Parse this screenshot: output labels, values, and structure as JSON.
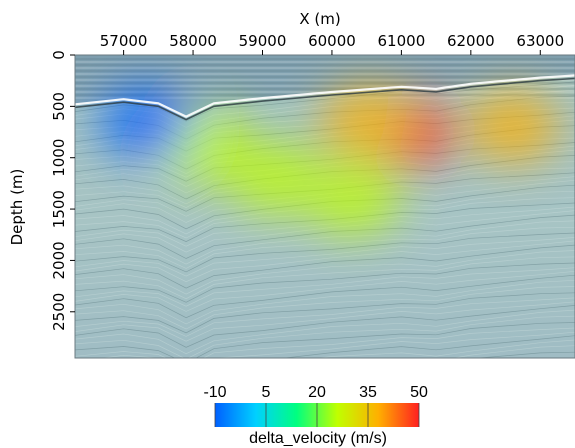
{
  "chart_data": {
    "type": "heatmap",
    "title": "",
    "xlabel": "X (m)",
    "ylabel": "Depth  (m)",
    "xlim": [
      56300,
      63500
    ],
    "ylim": [
      0,
      2950
    ],
    "x_ticks": [
      57000,
      58000,
      59000,
      60000,
      61000,
      62000,
      63000
    ],
    "y_ticks": [
      0,
      500,
      1000,
      1500,
      2000,
      2500
    ],
    "x_tick_labels": [
      "57000",
      "58000",
      "59000",
      "60000",
      "61000",
      "62000",
      "63000"
    ],
    "y_tick_labels": [
      "0",
      "500",
      "1000",
      "1500",
      "2000",
      "2500"
    ],
    "seafloor_depth": [
      {
        "x": 56300,
        "depth": 480
      },
      {
        "x": 57000,
        "depth": 430
      },
      {
        "x": 57500,
        "depth": 470
      },
      {
        "x": 57900,
        "depth": 600
      },
      {
        "x": 58300,
        "depth": 470
      },
      {
        "x": 59000,
        "depth": 420
      },
      {
        "x": 60000,
        "depth": 360
      },
      {
        "x": 61000,
        "depth": 310
      },
      {
        "x": 61500,
        "depth": 330
      },
      {
        "x": 62000,
        "depth": 280
      },
      {
        "x": 63000,
        "depth": 220
      },
      {
        "x": 63500,
        "depth": 200
      }
    ],
    "anomalies": [
      {
        "x": 61100,
        "depth": 750,
        "value": 48
      },
      {
        "x": 60500,
        "depth": 650,
        "value": 42
      },
      {
        "x": 62600,
        "depth": 700,
        "value": 40
      },
      {
        "x": 58200,
        "depth": 900,
        "value": 30
      },
      {
        "x": 57300,
        "depth": 650,
        "value": -8
      },
      {
        "x": 60300,
        "depth": 1400,
        "value": 30
      },
      {
        "x": 59200,
        "depth": 1200,
        "value": 22
      }
    ],
    "colorbar": {
      "label": "delta_velocity (m/s)",
      "min": -10,
      "max": 50,
      "ticks": [
        -10,
        5,
        20,
        35,
        50
      ],
      "tick_labels": [
        "-10",
        "5",
        "20",
        "35",
        "50"
      ],
      "colors": [
        "#0060ff",
        "#00d0ff",
        "#00ff80",
        "#c0ff00",
        "#ffb000",
        "#ff2020"
      ]
    }
  }
}
